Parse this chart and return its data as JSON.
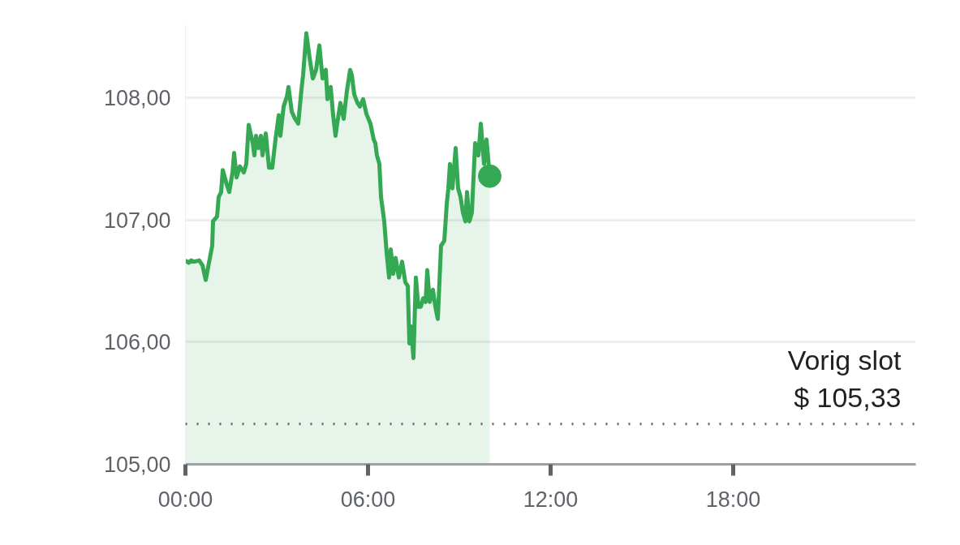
{
  "chart_data": {
    "type": "area",
    "color": "#34a853",
    "x": [
      0,
      0.107,
      0.187,
      0.293,
      0.453,
      0.56,
      0.667,
      0.88,
      0.907,
      1.04,
      1.093,
      1.173,
      1.227,
      1.36,
      1.44,
      1.547,
      1.6,
      1.68,
      1.787,
      1.92,
      2.0,
      2.08,
      2.213,
      2.267,
      2.32,
      2.4,
      2.48,
      2.533,
      2.64,
      2.747,
      2.853,
      2.96,
      3.067,
      3.12,
      3.227,
      3.333,
      3.387,
      3.493,
      3.6,
      3.707,
      3.813,
      3.867,
      3.973,
      4.08,
      4.187,
      4.293,
      4.4,
      4.507,
      4.613,
      4.667,
      4.773,
      4.853,
      4.933,
      4.987,
      5.093,
      5.2,
      5.307,
      5.413,
      5.467,
      5.547,
      5.653,
      5.733,
      5.84,
      5.947,
      6.08,
      6.187,
      6.24,
      6.293,
      6.373,
      6.427,
      6.533,
      6.613,
      6.693,
      6.747,
      6.827,
      6.907,
      7.013,
      7.12,
      7.227,
      7.307,
      7.36,
      7.413,
      7.493,
      7.573,
      7.653,
      7.733,
      7.813,
      7.893,
      7.947,
      8.027,
      8.133,
      8.213,
      8.293,
      8.4,
      8.507,
      8.587,
      8.64,
      8.693,
      8.773,
      8.88,
      8.96,
      9.04,
      9.12,
      9.2,
      9.253,
      9.333,
      9.413,
      9.52,
      9.627,
      9.707,
      9.813,
      9.893,
      10.0
    ],
    "values": [
      106.67,
      106.65,
      106.67,
      106.66,
      106.67,
      106.63,
      106.51,
      106.79,
      106.99,
      107.03,
      107.19,
      107.23,
      107.41,
      107.29,
      107.23,
      107.39,
      107.55,
      107.35,
      107.44,
      107.39,
      107.46,
      107.78,
      107.63,
      107.53,
      107.69,
      107.59,
      107.69,
      107.53,
      107.71,
      107.43,
      107.43,
      107.66,
      107.86,
      107.69,
      107.93,
      108.01,
      108.09,
      107.89,
      107.83,
      107.79,
      108.07,
      108.19,
      108.53,
      108.33,
      108.16,
      108.23,
      108.43,
      108.16,
      108.23,
      107.99,
      108.09,
      107.86,
      107.69,
      107.79,
      107.96,
      107.83,
      108.06,
      108.23,
      108.19,
      108.03,
      107.96,
      107.93,
      107.99,
      107.87,
      107.79,
      107.66,
      107.63,
      107.53,
      107.46,
      107.19,
      106.99,
      106.73,
      106.53,
      106.76,
      106.56,
      106.69,
      106.53,
      106.66,
      106.49,
      106.46,
      105.99,
      106.13,
      105.87,
      106.53,
      106.29,
      106.29,
      106.36,
      106.33,
      106.59,
      106.33,
      106.43,
      106.29,
      106.19,
      106.79,
      106.83,
      107.13,
      107.26,
      107.46,
      107.26,
      107.59,
      107.26,
      107.19,
      107.06,
      106.99,
      107.23,
      106.99,
      107.06,
      107.63,
      107.53,
      107.79,
      107.46,
      107.66,
      107.36
    ],
    "xlim": [
      0,
      24
    ],
    "ylim": [
      105,
      108.6
    ],
    "xticks": [
      {
        "value": 0,
        "label": "00:00"
      },
      {
        "value": 6,
        "label": "06:00"
      },
      {
        "value": 12,
        "label": "12:00"
      },
      {
        "value": 18,
        "label": "18:00"
      }
    ],
    "yticks": [
      {
        "value": 105,
        "label": "105,00"
      },
      {
        "value": 106,
        "label": "106,00"
      },
      {
        "value": 107,
        "label": "107,00"
      },
      {
        "value": 108,
        "label": "108,00"
      }
    ],
    "grid": "y",
    "ref_lines": [
      {
        "axis": "y",
        "value": 105.33,
        "label": "Vorig slot\n$ 105,33",
        "color": "#5f6368",
        "line_style": "dotted"
      }
    ]
  }
}
